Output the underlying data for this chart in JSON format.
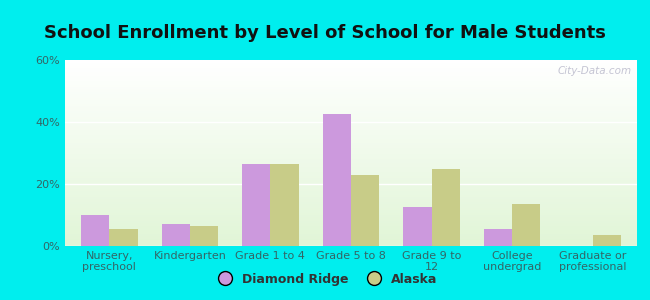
{
  "title": "School Enrollment by Level of School for Male Students",
  "categories": [
    "Nursery,\npreschool",
    "Kindergarten",
    "Grade 1 to 4",
    "Grade 5 to 8",
    "Grade 9 to\n12",
    "College\nundergrad",
    "Graduate or\nprofessional"
  ],
  "diamond_ridge": [
    10.0,
    7.0,
    26.5,
    42.5,
    12.5,
    5.5,
    0.0
  ],
  "alaska": [
    5.5,
    6.5,
    26.5,
    23.0,
    25.0,
    13.5,
    3.5
  ],
  "diamond_ridge_color": "#cc99dd",
  "alaska_color": "#c8cc88",
  "background_color": "#00eeee",
  "ylim": [
    0,
    60
  ],
  "yticks": [
    0,
    20,
    40,
    60
  ],
  "ytick_labels": [
    "0%",
    "20%",
    "40%",
    "60%"
  ],
  "bar_width": 0.35,
  "legend_labels": [
    "Diamond Ridge",
    "Alaska"
  ],
  "title_fontsize": 13,
  "tick_fontsize": 8,
  "legend_fontsize": 9,
  "watermark_text": "City-Data.com"
}
